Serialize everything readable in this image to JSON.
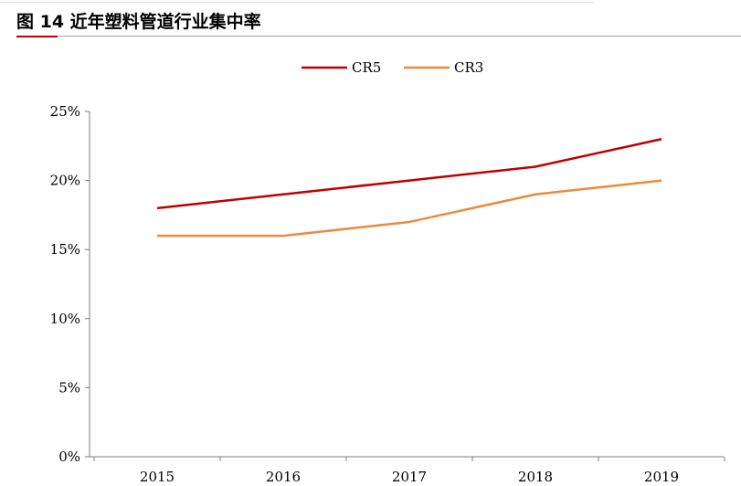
{
  "figure": {
    "title": "图 14 近年塑料管道行业集中率"
  },
  "chart_data": {
    "type": "line",
    "x": [
      "2015",
      "2016",
      "2017",
      "2018",
      "2019"
    ],
    "series": [
      {
        "name": "CR5",
        "values": [
          18,
          19,
          20,
          21,
          23
        ],
        "color": "#c00000"
      },
      {
        "name": "CR3",
        "values": [
          16,
          16,
          17,
          19,
          20
        ],
        "color": "#ed8b3b"
      }
    ],
    "yticks": [
      "0%",
      "5%",
      "10%",
      "15%",
      "20%",
      "25%"
    ],
    "ylim": [
      0,
      25
    ],
    "legend": "top-center",
    "grid": false
  }
}
